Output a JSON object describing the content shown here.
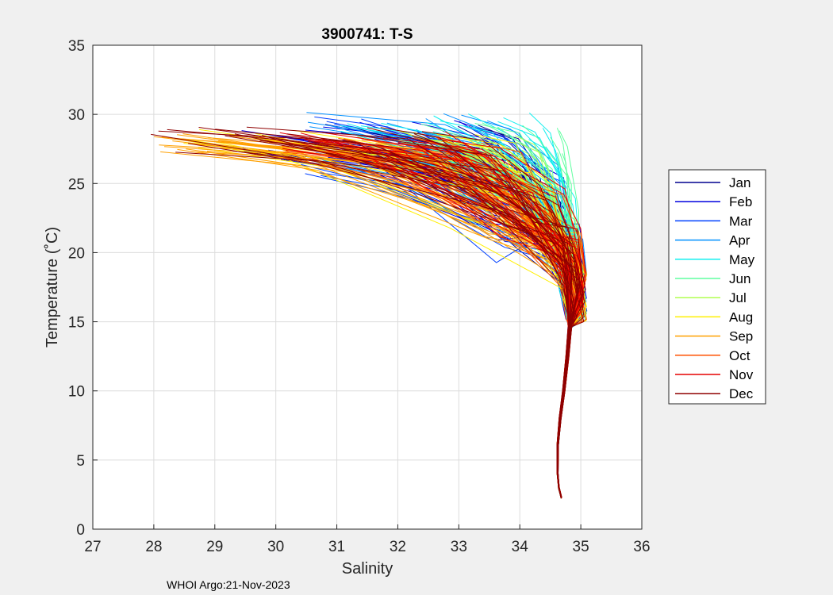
{
  "chart_data": {
    "type": "line",
    "title": "3900741:  T-S",
    "xlabel": "Salinity",
    "ylabel": "Temperature (˚C)",
    "xlim": [
      27,
      36
    ],
    "ylim": [
      0,
      35
    ],
    "xticks": [
      27,
      28,
      29,
      30,
      31,
      32,
      33,
      34,
      35,
      36
    ],
    "yticks": [
      0,
      5,
      10,
      15,
      20,
      25,
      30,
      35
    ],
    "grid": true,
    "legend_position": "right",
    "footer": "WHOI Argo:21-Nov-2023",
    "series": [
      {
        "name": "Jan",
        "color": "#00008f",
        "surface_salinity_range": [
          30.8,
          33.6
        ],
        "surface_temperature_range": [
          26.8,
          29.4
        ]
      },
      {
        "name": "Feb",
        "color": "#0000df",
        "surface_salinity_range": [
          29.4,
          33.4
        ],
        "surface_temperature_range": [
          26.5,
          29.6
        ]
      },
      {
        "name": "Mar",
        "color": "#0040ff",
        "surface_salinity_range": [
          30.4,
          33.8
        ],
        "surface_temperature_range": [
          25.2,
          29.9
        ]
      },
      {
        "name": "Apr",
        "color": "#0090ff",
        "surface_salinity_range": [
          30.4,
          34.2
        ],
        "surface_temperature_range": [
          26.0,
          30.2
        ]
      },
      {
        "name": "May",
        "color": "#10efef",
        "surface_salinity_range": [
          31.0,
          34.6
        ],
        "surface_temperature_range": [
          27.0,
          30.3
        ]
      },
      {
        "name": "Jun",
        "color": "#60ffa0",
        "surface_salinity_range": [
          31.8,
          34.7
        ],
        "surface_temperature_range": [
          26.5,
          29.4
        ]
      },
      {
        "name": "Jul",
        "color": "#b0ff50",
        "surface_salinity_range": [
          31.2,
          34.4
        ],
        "surface_temperature_range": [
          26.8,
          28.9
        ]
      },
      {
        "name": "Aug",
        "color": "#ffef00",
        "surface_salinity_range": [
          28.3,
          33.8
        ],
        "surface_temperature_range": [
          27.5,
          28.9
        ]
      },
      {
        "name": "Sep",
        "color": "#ffa000",
        "surface_salinity_range": [
          28.0,
          33.6
        ],
        "surface_temperature_range": [
          27.2,
          28.6
        ]
      },
      {
        "name": "Oct",
        "color": "#ff5000",
        "surface_salinity_range": [
          29.6,
          33.4
        ],
        "surface_temperature_range": [
          26.8,
          28.4
        ]
      },
      {
        "name": "Nov",
        "color": "#e60000",
        "surface_salinity_range": [
          30.0,
          33.2
        ],
        "surface_temperature_range": [
          26.8,
          28.8
        ]
      },
      {
        "name": "Dec",
        "color": "#8f0000",
        "surface_salinity_range": [
          27.9,
          33.0
        ],
        "surface_temperature_range": [
          27.0,
          29.1
        ]
      }
    ]
  }
}
